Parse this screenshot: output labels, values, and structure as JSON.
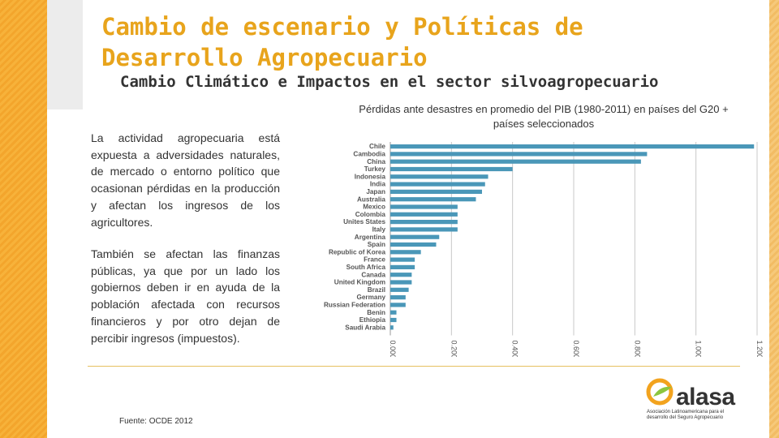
{
  "slide": {
    "title": "Cambio de escenario y Políticas de Desarrollo Agropecuario",
    "subtitle": "Cambio Climático e Impactos en el sector silvoagropecuario",
    "paragraph1": "La actividad agropecuaria está expuesta a adversidades naturales, de mercado o entorno político que ocasionan pérdidas en la producción y afectan los ingresos de los agricultores.",
    "paragraph2": "También se afectan las finanzas públicas, ya que por un lado los gobiernos deben ir en ayuda de la población afectada con recursos financieros y por otro dejan de percibir ingresos (impuestos).",
    "source": "Fuente: OCDE 2012"
  },
  "logo": {
    "name": "alasa",
    "tagline": "Asociación Latinoamericana para el desarrollo del Seguro Agropecuario"
  },
  "colors": {
    "title": "#e8a41c",
    "bar": "#4a97b8",
    "logo_orange": "#f2a31e",
    "logo_green": "#8cc63f"
  },
  "chart_data": {
    "type": "bar",
    "orientation": "horizontal",
    "title": "Pérdidas ante desastres en promedio del PIB (1980-2011) en países del G20 + países seleccionados",
    "categories": [
      "Chile",
      "Cambodia",
      "China",
      "Turkey",
      "Indonesia",
      "India",
      "Japan",
      "Australia",
      "Mexico",
      "Colombia",
      "Unites States",
      "Italy",
      "Argentina",
      "Spain",
      "Republic of Korea",
      "France",
      "South Africa",
      "Canada",
      "United Kingdom",
      "Brazil",
      "Germany",
      "Russian Federation",
      "Benin",
      "Ethiopia",
      "Saudi Arabia"
    ],
    "values": [
      1.19,
      0.84,
      0.82,
      0.4,
      0.32,
      0.31,
      0.3,
      0.28,
      0.22,
      0.22,
      0.22,
      0.22,
      0.16,
      0.15,
      0.1,
      0.08,
      0.08,
      0.07,
      0.07,
      0.06,
      0.05,
      0.05,
      0.02,
      0.02,
      0.01
    ],
    "xlim": [
      0,
      1.2
    ],
    "ticks": [
      0,
      0.2,
      0.4,
      0.6,
      0.8,
      1.0,
      1.2
    ],
    "tick_labels": [
      "0.000%",
      "0.200%",
      "0.400%",
      "0.600%",
      "0.800%",
      "1.000%",
      "1.200%"
    ],
    "grid": true
  }
}
